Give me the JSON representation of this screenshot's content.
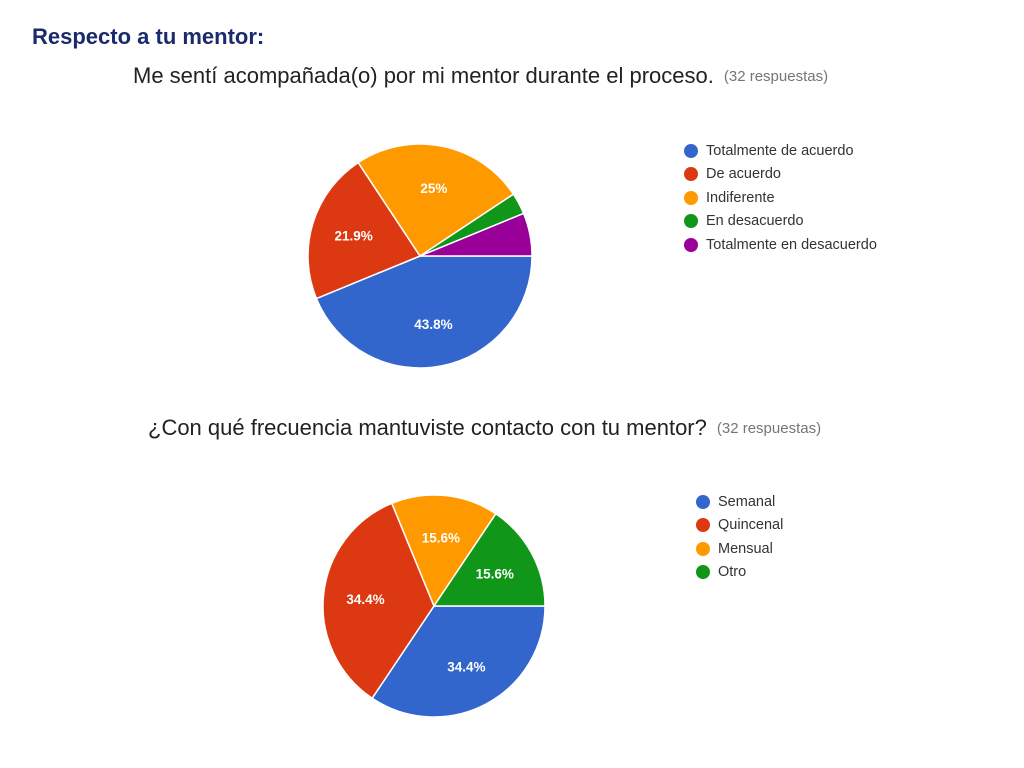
{
  "page": {
    "title": "Respecto a tu mentor:"
  },
  "chart_data": [
    {
      "type": "pie",
      "title": "Me sentí acompañada(o) por mi mentor durante el proceso.",
      "subtitle": "(32 respuestas)",
      "categories": [
        "Totalmente de acuerdo",
        "De acuerdo",
        "Indiferente",
        "En desacuerdo",
        "Totalmente en desacuerdo"
      ],
      "values": [
        43.8,
        21.9,
        25.0,
        3.1,
        6.2
      ],
      "labels": [
        "43.8%",
        "21.9%",
        "25%",
        "",
        ""
      ],
      "colors": [
        "#3366cc",
        "#dc3912",
        "#ff9900",
        "#109618",
        "#990099"
      ],
      "legend_position": "right"
    },
    {
      "type": "pie",
      "title": "¿Con qué frecuencia mantuviste contacto con tu mentor?",
      "subtitle": "(32 respuestas)",
      "categories": [
        "Semanal",
        "Quincenal",
        "Mensual",
        "Otro"
      ],
      "values": [
        34.4,
        34.4,
        15.6,
        15.6
      ],
      "labels": [
        "34.4%",
        "34.4%",
        "15.6%",
        "15.6%"
      ],
      "colors": [
        "#3366cc",
        "#dc3912",
        "#ff9900",
        "#109618"
      ],
      "legend_position": "right"
    }
  ]
}
